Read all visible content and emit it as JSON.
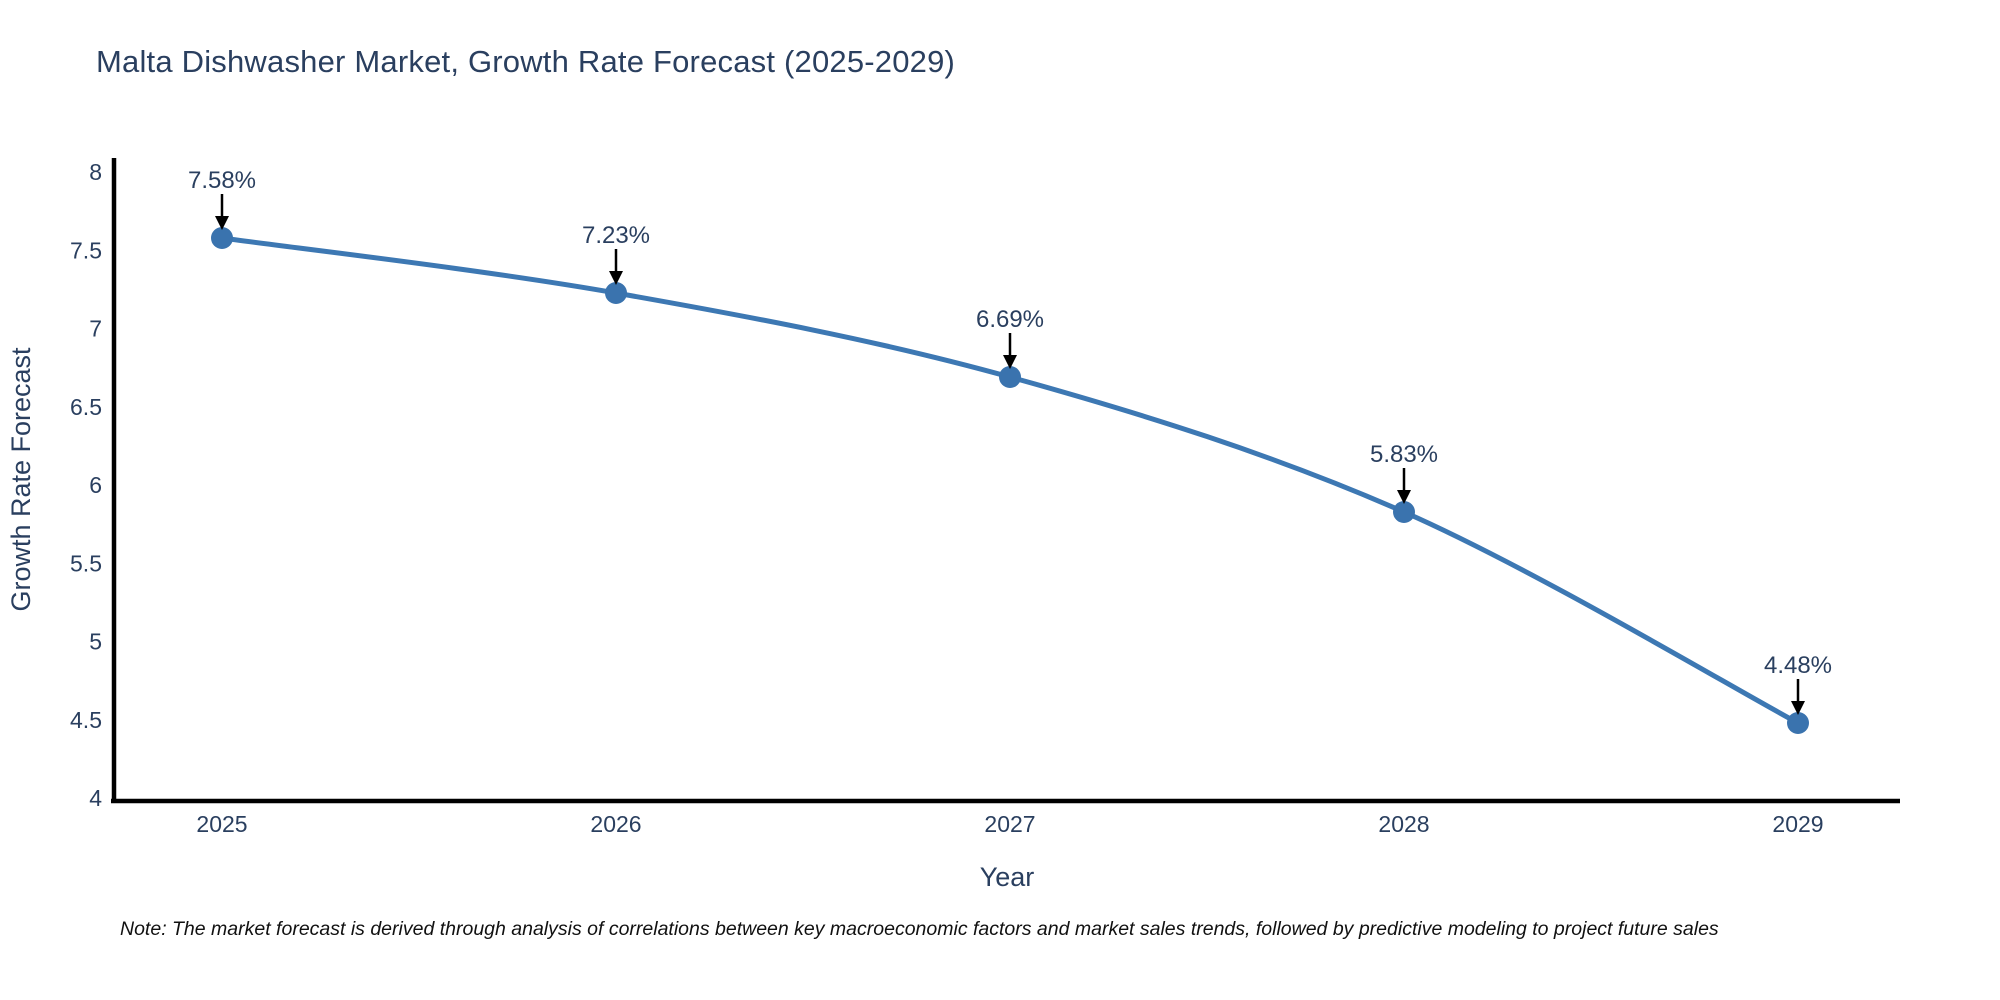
{
  "footnote": "Note: The market forecast is derived through analysis of correlations between key macroeconomic factors and market sales trends, followed by predictive modeling to project future sales",
  "chart_data": {
    "type": "line",
    "title": "Malta Dishwasher Market, Growth Rate Forecast (2025-2029)",
    "xlabel": "Year",
    "ylabel": "Growth Rate Forecast",
    "categories": [
      "2025",
      "2026",
      "2027",
      "2028",
      "2029"
    ],
    "series": [
      {
        "name": "Growth Rate Forecast",
        "values": [
          7.58,
          7.23,
          6.69,
          5.83,
          4.48
        ],
        "point_labels": [
          "7.58%",
          "7.23%",
          "6.69%",
          "5.83%",
          "4.48%"
        ]
      }
    ],
    "ylim": [
      4,
      8
    ],
    "yticks": [
      8,
      7.5,
      7,
      6.5,
      6,
      5.5,
      5,
      4.5,
      4
    ],
    "grid": false,
    "legend_position": "none",
    "line_shape": "spline",
    "annotation_arrows": true,
    "colors": {
      "line": "#3d78b3",
      "marker": "#3a73ae",
      "axis_line": "#000000",
      "title_text": "#2a3f5f",
      "tick_text": "#2a3f5f",
      "axis_title_text": "#2a3f5f",
      "annotation_text": "#2a3f5f",
      "arrow": "#000000",
      "note_text": "#111111",
      "background": "#ffffff"
    }
  }
}
